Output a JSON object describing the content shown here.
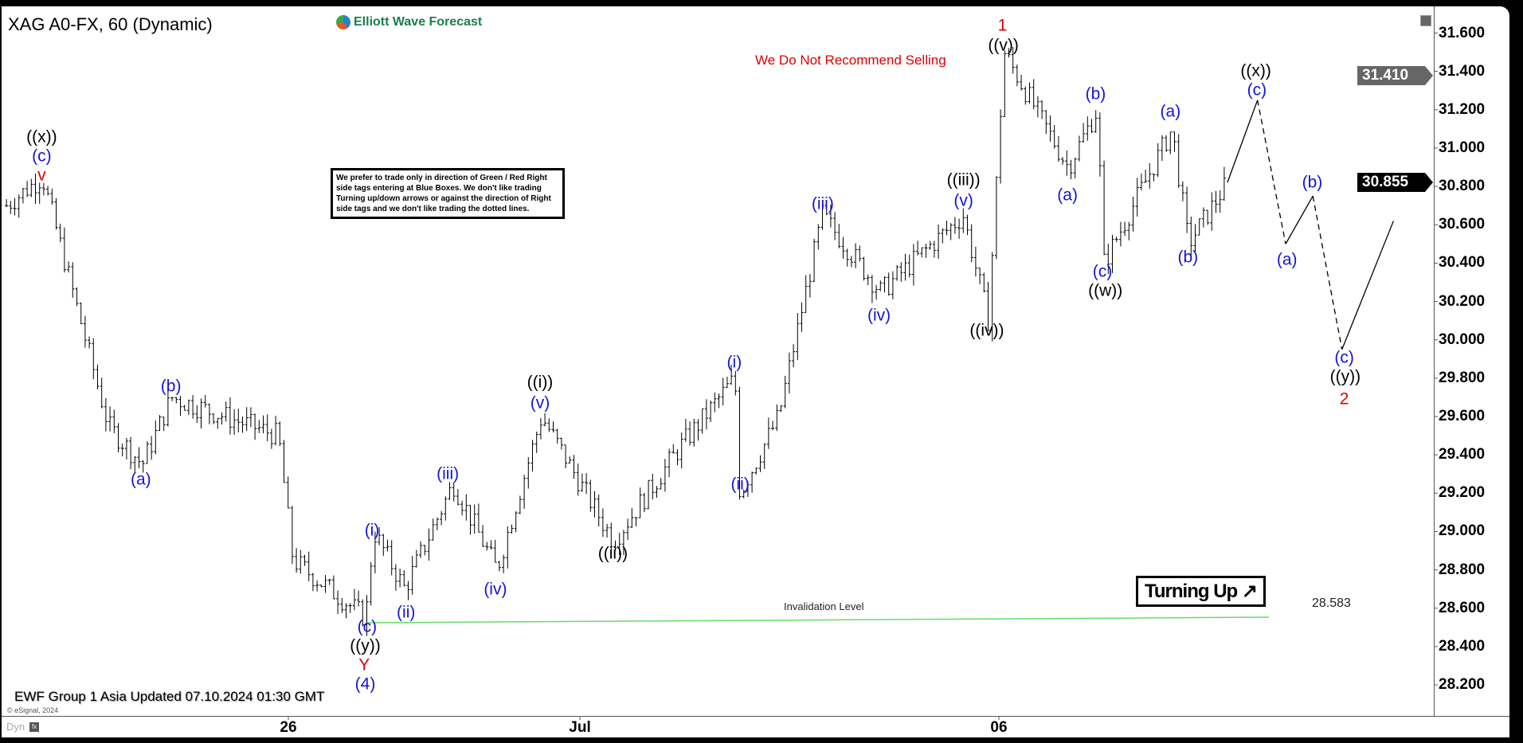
{
  "header": {
    "title": "XAG A0-FX, 60 (Dynamic)",
    "logo_text": "Elliott Wave Forecast"
  },
  "warning": "We Do Not Recommend Selling",
  "note": "We prefer to trade only in direction of Green / Red Right side tags entering at Blue Boxes. We don't like trading Turning up/down arrows or against the direction of Right side tags and we don't like trading the dotted lines.",
  "turning": "Turning Up ↗",
  "invalidation": {
    "label": "Invalidation Level",
    "value": "28.583",
    "color": "#66dd66"
  },
  "footer": {
    "updated": "EWF Group 1 Asia Updated 07.10.2024 01:30 GMT",
    "copyright": "© eSignal, 2024",
    "dyn": "Dyn",
    "fx_icon": "fx-icon"
  },
  "price_tags": {
    "high": "31.410",
    "last": "30.855"
  },
  "chart_data": {
    "type": "ohlc",
    "ylim": [
      28.1,
      31.7
    ],
    "y_ticks": [
      "31.600",
      "31.400",
      "31.200",
      "31.000",
      "30.800",
      "30.600",
      "30.400",
      "30.200",
      "30.000",
      "29.800",
      "29.600",
      "29.400",
      "29.200",
      "29.000",
      "28.800",
      "28.600",
      "28.400",
      "28.200"
    ],
    "x_ticks": [
      "26",
      "Jul",
      "06"
    ],
    "pivots": [
      30.7,
      30.85,
      29.55,
      29.35,
      29.7,
      29.5,
      28.85,
      28.55,
      29.0,
      28.7,
      29.25,
      28.8,
      29.6,
      28.95,
      29.45,
      29.8,
      29.2,
      29.6,
      30.65,
      30.25,
      30.65,
      30.1,
      31.5,
      30.9,
      31.2,
      30.4,
      31.1,
      30.5,
      30.82
    ],
    "projection": [
      30.82,
      31.25,
      30.5,
      30.75,
      29.95,
      30.62
    ],
    "wave_labels": [
      {
        "t": "((x))",
        "c": "black"
      },
      {
        "t": "(c)",
        "c": "blue"
      },
      {
        "t": "v",
        "c": "red"
      },
      {
        "t": "(a)",
        "c": "blue"
      },
      {
        "t": "(b)",
        "c": "blue"
      },
      {
        "t": "(i)",
        "c": "blue"
      },
      {
        "t": "(ii)",
        "c": "blue"
      },
      {
        "t": "(iii)",
        "c": "blue"
      },
      {
        "t": "(iv)",
        "c": "blue"
      },
      {
        "t": "(v)",
        "c": "blue"
      },
      {
        "t": "((i))",
        "c": "black"
      },
      {
        "t": "((ii))",
        "c": "black"
      },
      {
        "t": "(c)",
        "c": "blue"
      },
      {
        "t": "((y))",
        "c": "black"
      },
      {
        "t": "Y",
        "c": "red"
      },
      {
        "t": "(4)",
        "c": "blue"
      },
      {
        "t": "(i)",
        "c": "blue"
      },
      {
        "t": "(ii)",
        "c": "blue"
      },
      {
        "t": "(iii)",
        "c": "blue"
      },
      {
        "t": "(iv)",
        "c": "blue"
      },
      {
        "t": "(v)",
        "c": "blue"
      },
      {
        "t": "((iii))",
        "c": "black"
      },
      {
        "t": "((iv))",
        "c": "black"
      },
      {
        "t": "((v))",
        "c": "black"
      },
      {
        "t": "1",
        "c": "red"
      },
      {
        "t": "(a)",
        "c": "blue"
      },
      {
        "t": "(b)",
        "c": "blue"
      },
      {
        "t": "(c)",
        "c": "blue"
      },
      {
        "t": "((w))",
        "c": "black"
      },
      {
        "t": "(a)",
        "c": "blue"
      },
      {
        "t": "(b)",
        "c": "blue"
      },
      {
        "t": "((x))",
        "c": "black"
      },
      {
        "t": "(c)",
        "c": "blue"
      },
      {
        "t": "(a)",
        "c": "blue"
      },
      {
        "t": "(b)",
        "c": "blue"
      },
      {
        "t": "(c)",
        "c": "blue"
      },
      {
        "t": "((y))",
        "c": "black"
      },
      {
        "t": "2",
        "c": "red"
      }
    ],
    "colors": {
      "blue": "#1414d8",
      "black": "#000000",
      "red": "#e00000"
    }
  }
}
